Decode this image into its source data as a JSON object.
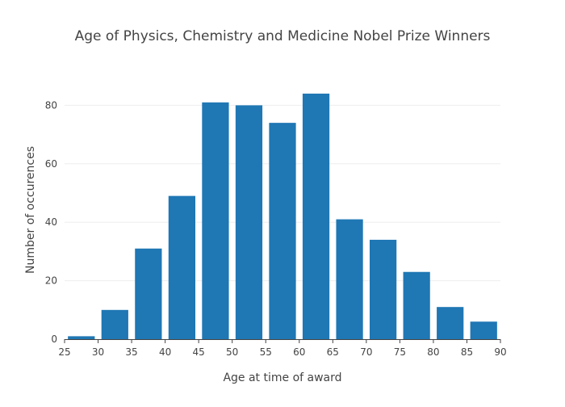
{
  "chart_data": {
    "type": "bar",
    "title": "Age of Physics, Chemistry and Medicine Nobel Prize Winners",
    "xlabel": "Age at time of award",
    "ylabel": "Number of occurences",
    "bins": [
      {
        "start": 25,
        "end": 30,
        "value": 1
      },
      {
        "start": 30,
        "end": 35,
        "value": 10
      },
      {
        "start": 35,
        "end": 40,
        "value": 31
      },
      {
        "start": 40,
        "end": 45,
        "value": 49
      },
      {
        "start": 45,
        "end": 50,
        "value": 81
      },
      {
        "start": 50,
        "end": 55,
        "value": 80
      },
      {
        "start": 55,
        "end": 60,
        "value": 74
      },
      {
        "start": 60,
        "end": 65,
        "value": 84
      },
      {
        "start": 65,
        "end": 70,
        "value": 41
      },
      {
        "start": 70,
        "end": 75,
        "value": 34
      },
      {
        "start": 75,
        "end": 80,
        "value": 23
      },
      {
        "start": 80,
        "end": 85,
        "value": 11
      },
      {
        "start": 85,
        "end": 90,
        "value": 6
      }
    ],
    "xlim": [
      25,
      90
    ],
    "ylim": [
      0,
      88.4
    ],
    "xticks": [
      25,
      30,
      35,
      40,
      45,
      50,
      55,
      60,
      65,
      70,
      75,
      80,
      85,
      90
    ],
    "yticks": [
      0,
      20,
      40,
      60,
      80
    ],
    "grid": true,
    "bar_color": "#1f77b4",
    "grid_color": "#eeeeee",
    "axis_line_color": "#444444",
    "text_color": "#444444"
  }
}
